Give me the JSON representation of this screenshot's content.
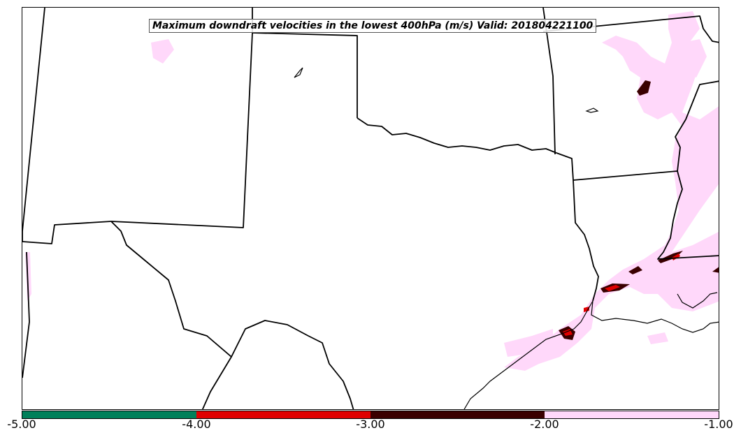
{
  "title": "Maximum downdraft velocities in the lowest 400hPa (m/s) Valid: 201804221100",
  "colorbar": {
    "colors": [
      "#00805a",
      "#e00000",
      "#3a0000",
      "#ffd8fa"
    ],
    "ticks": [
      "-5.00",
      "-4.00",
      "-3.00",
      "-2.00",
      "-1.00"
    ]
  },
  "map": {
    "boundary_color": "#000000",
    "field_colors": {
      "light": "#ffd8fa",
      "medium": "#3a0000",
      "strong": "#e00000"
    }
  }
}
